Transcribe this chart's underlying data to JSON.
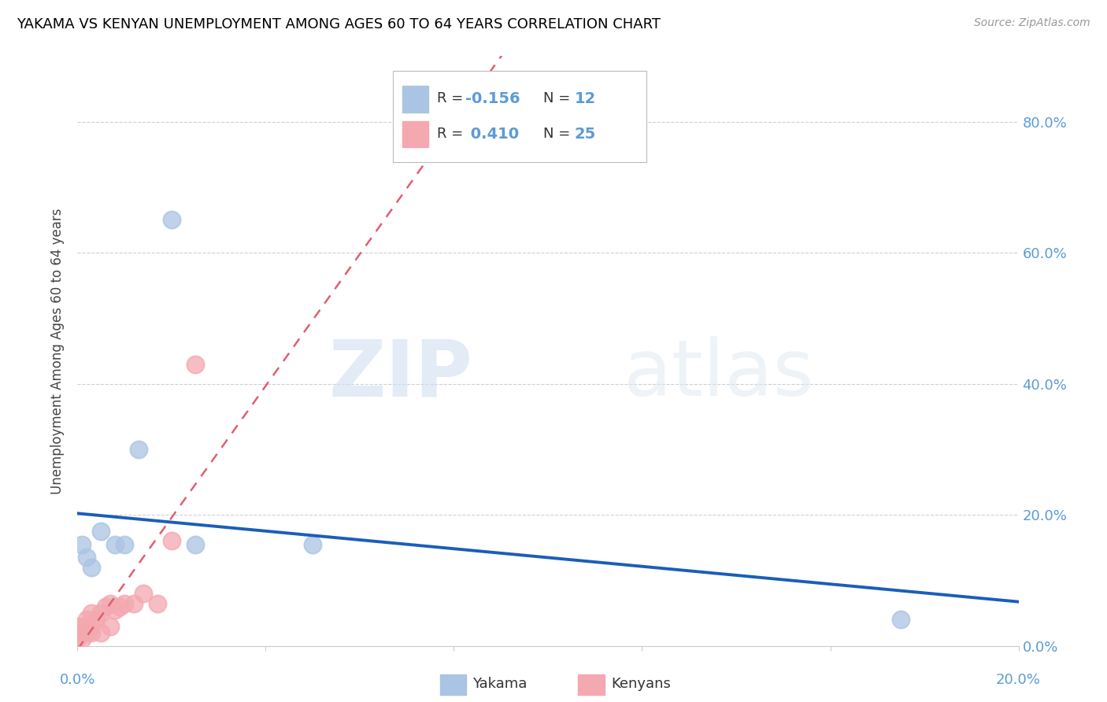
{
  "title": "YAKAMA VS KENYAN UNEMPLOYMENT AMONG AGES 60 TO 64 YEARS CORRELATION CHART",
  "source": "Source: ZipAtlas.com",
  "ylabel": "Unemployment Among Ages 60 to 64 years",
  "xlim": [
    0.0,
    0.2
  ],
  "ylim": [
    0.0,
    0.9
  ],
  "yticks": [
    0.0,
    0.2,
    0.4,
    0.6,
    0.8
  ],
  "ytick_labels_right": [
    "0.0%",
    "20.0%",
    "40.0%",
    "60.0%",
    "80.0%"
  ],
  "yakama_x": [
    0.001,
    0.001,
    0.002,
    0.003,
    0.005,
    0.008,
    0.01,
    0.013,
    0.02,
    0.025,
    0.05,
    0.175
  ],
  "yakama_y": [
    0.02,
    0.155,
    0.135,
    0.12,
    0.175,
    0.155,
    0.155,
    0.3,
    0.65,
    0.155,
    0.155,
    0.04
  ],
  "kenyans_x": [
    0.0,
    0.0,
    0.0,
    0.001,
    0.001,
    0.001,
    0.002,
    0.002,
    0.003,
    0.003,
    0.003,
    0.004,
    0.005,
    0.005,
    0.006,
    0.007,
    0.007,
    0.008,
    0.009,
    0.01,
    0.012,
    0.014,
    0.017,
    0.02,
    0.025
  ],
  "kenyans_y": [
    0.01,
    0.02,
    0.03,
    0.01,
    0.02,
    0.03,
    0.02,
    0.04,
    0.02,
    0.03,
    0.05,
    0.04,
    0.02,
    0.05,
    0.06,
    0.03,
    0.065,
    0.055,
    0.06,
    0.065,
    0.065,
    0.08,
    0.065,
    0.16,
    0.43
  ],
  "yakama_color": "#aac4e4",
  "kenyans_color": "#f4a8b0",
  "yakama_line_color": "#1a5eb8",
  "kenyans_line_color": "#e06070",
  "kenyans_line_dashed": true,
  "yakama_R": -0.156,
  "yakama_N": 12,
  "kenyans_R": 0.41,
  "kenyans_N": 25,
  "legend_label_yakama": "Yakama",
  "legend_label_kenyans": "Kenyans",
  "background_color": "#ffffff",
  "grid_color": "#d0d0d0",
  "watermark_zip_color": "#d0dff0",
  "watermark_atlas_color": "#dce8f0"
}
